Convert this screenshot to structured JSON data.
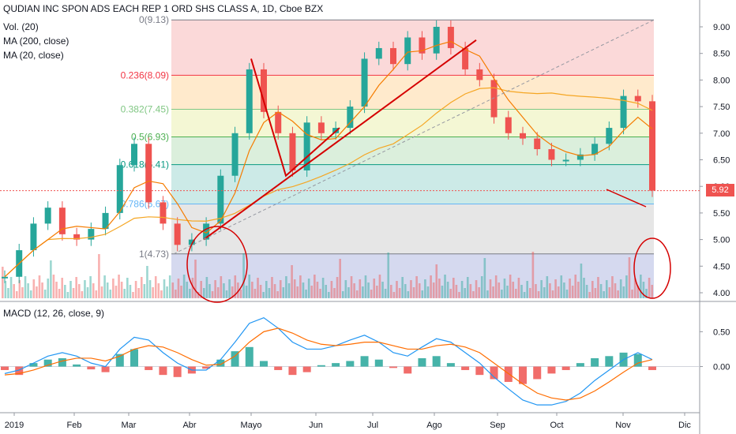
{
  "header": {
    "title": "QUDIAN INC SPON ADS EACH REP 1 ORD SHS CLASS A, 1D, Cboe BZX"
  },
  "indicators": {
    "vol": "Vol. (20)",
    "ma200": "MA (200, close)",
    "ma20": "MA (20, close)",
    "macd": "MACD (12, 26, close, 9)"
  },
  "last_price": "5.92",
  "colors": {
    "up": "#26a69a",
    "down": "#ef5350",
    "ma200": "#f5a623",
    "ma20": "#f57c00",
    "trend": "#d50000",
    "macd": "#2196f3",
    "signal": "#ff6d00"
  },
  "chart_data": [
    {
      "type": "candlestick",
      "x_labels": [
        "2019",
        "Feb",
        "Mar",
        "Abr",
        "Mayo",
        "Jun",
        "Jul",
        "Ago",
        "Sep",
        "Oct",
        "Nov",
        "Dic"
      ],
      "y_ticks": [
        "9.00",
        "8.50",
        "8.00",
        "7.50",
        "7.00",
        "6.50",
        "6.00",
        "5.50",
        "5.00",
        "4.50",
        "4.00"
      ],
      "ylim": [
        3.9,
        9.3
      ],
      "close_series": [
        4.3,
        4.8,
        5.3,
        5.6,
        5.1,
        5.0,
        5.2,
        5.5,
        6.4,
        6.8,
        5.7,
        5.3,
        4.9,
        5.0,
        5.3,
        6.2,
        7.0,
        8.2,
        7.4,
        7.0,
        6.3,
        7.2,
        7.0,
        7.1,
        7.5,
        8.4,
        8.6,
        8.3,
        8.8,
        8.5,
        9.0,
        8.6,
        8.2,
        8.0,
        7.3,
        7.0,
        6.9,
        6.7,
        6.5,
        6.5,
        6.6,
        6.8,
        7.1,
        7.7,
        7.6,
        5.92
      ],
      "fib_levels": [
        {
          "label": "0(9.13)",
          "value": 9.13
        },
        {
          "label": "0.236(8.09)",
          "value": 8.09
        },
        {
          "label": "0.382(7.45)",
          "value": 7.45
        },
        {
          "label": "0.5(6.93)",
          "value": 6.93
        },
        {
          "label": "0.618(6.41)",
          "value": 6.41
        },
        {
          "label": "0.786(5.67)",
          "value": 5.67
        },
        {
          "label": "1(4.73)",
          "value": 4.73
        }
      ],
      "series": [
        {
          "name": "MA (200, close)"
        },
        {
          "name": "MA (20, close)"
        }
      ]
    },
    {
      "type": "bar",
      "indicator": "MACD (12, 26, close, 9)",
      "y_ticks": [
        "0.50",
        "0.00"
      ],
      "ylim": [
        -0.65,
        0.9
      ],
      "histogram": [
        -0.05,
        -0.12,
        0.05,
        0.1,
        0.12,
        0.03,
        -0.04,
        -0.08,
        0.18,
        0.25,
        -0.05,
        -0.12,
        -0.15,
        -0.1,
        -0.03,
        0.1,
        0.22,
        0.28,
        0.08,
        -0.05,
        -0.12,
        -0.08,
        0.02,
        0.05,
        0.08,
        0.15,
        0.1,
        -0.02,
        -0.1,
        0.12,
        0.15,
        0.05,
        -0.05,
        -0.12,
        -0.18,
        -0.22,
        -0.25,
        -0.18,
        -0.1,
        -0.05,
        0.05,
        0.12,
        0.15,
        0.2,
        0.18,
        -0.05
      ],
      "macd": [
        -0.1,
        -0.05,
        0.05,
        0.15,
        0.2,
        0.15,
        0.05,
        0.0,
        0.25,
        0.42,
        0.38,
        0.2,
        0.05,
        -0.05,
        -0.05,
        0.1,
        0.35,
        0.62,
        0.7,
        0.55,
        0.35,
        0.25,
        0.25,
        0.3,
        0.38,
        0.45,
        0.35,
        0.2,
        0.15,
        0.28,
        0.4,
        0.35,
        0.2,
        0.05,
        -0.15,
        -0.32,
        -0.48,
        -0.55,
        -0.55,
        -0.5,
        -0.38,
        -0.2,
        -0.05,
        0.1,
        0.2,
        0.1
      ],
      "signal": [
        -0.12,
        -0.1,
        -0.05,
        0.02,
        0.08,
        0.12,
        0.12,
        0.08,
        0.15,
        0.25,
        0.3,
        0.28,
        0.2,
        0.1,
        0.02,
        0.03,
        0.15,
        0.35,
        0.5,
        0.55,
        0.48,
        0.38,
        0.32,
        0.3,
        0.32,
        0.35,
        0.35,
        0.3,
        0.25,
        0.25,
        0.3,
        0.32,
        0.28,
        0.2,
        0.05,
        -0.1,
        -0.25,
        -0.38,
        -0.45,
        -0.48,
        -0.45,
        -0.35,
        -0.22,
        -0.08,
        0.05,
        0.1
      ]
    }
  ]
}
